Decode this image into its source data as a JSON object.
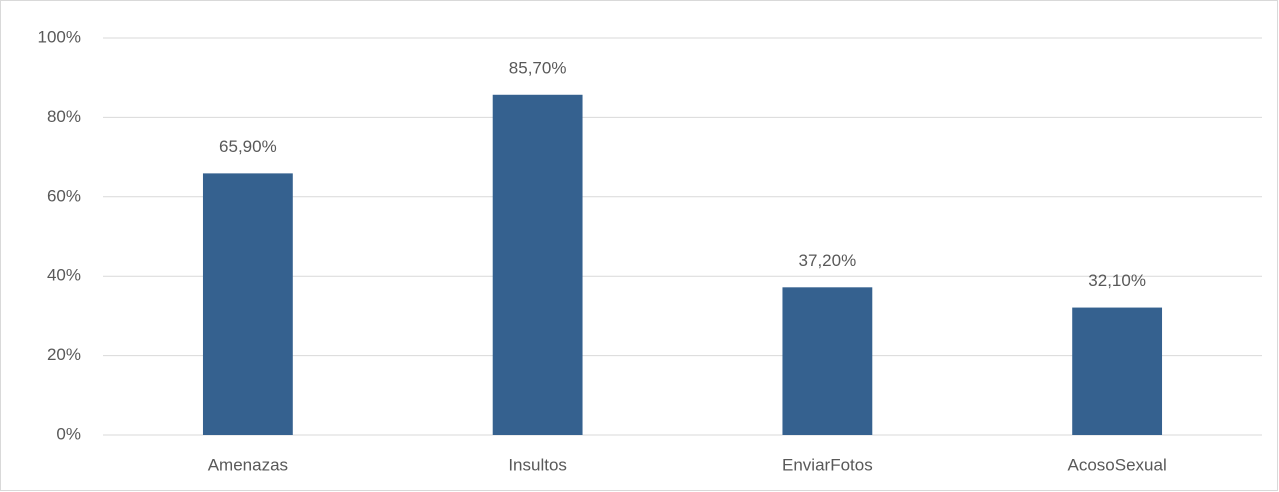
{
  "chart_data": {
    "type": "bar",
    "categories": [
      "Amenazas",
      "Insultos",
      "EnviarFotos",
      "AcosoSexual"
    ],
    "values": [
      65.9,
      85.7,
      37.2,
      32.1
    ],
    "value_labels": [
      "65,90%",
      "85,70%",
      "37,20%",
      "32,10%"
    ],
    "color": "#35618f",
    "ylim": [
      0,
      100
    ],
    "yticks": [
      {
        "value": 0,
        "label": "0%"
      },
      {
        "value": 20,
        "label": "20%"
      },
      {
        "value": 40,
        "label": "40%"
      },
      {
        "value": 60,
        "label": "60%"
      },
      {
        "value": 80,
        "label": "80%"
      },
      {
        "value": 100,
        "label": "100%"
      }
    ],
    "grid": true
  }
}
